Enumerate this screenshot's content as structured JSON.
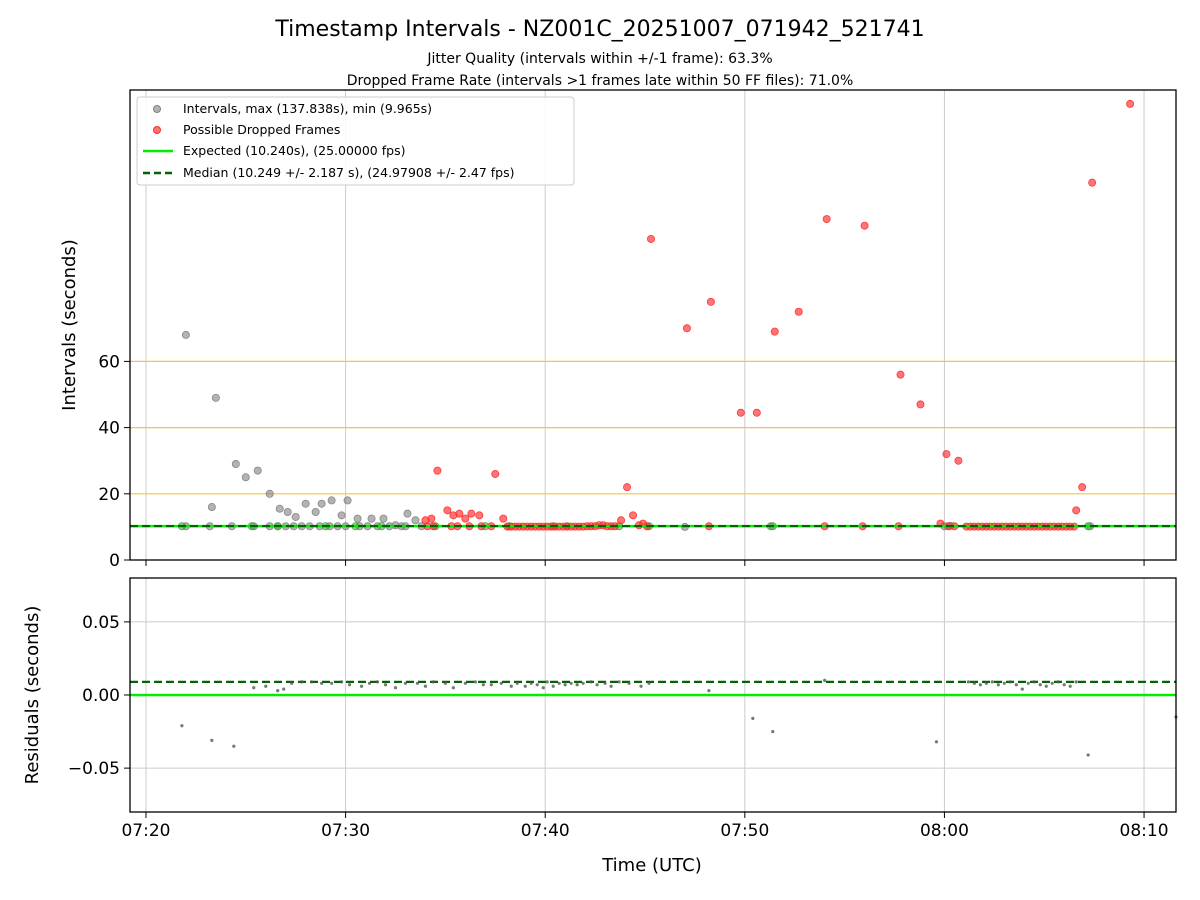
{
  "chart_data": {
    "type": "scatter",
    "title": "Timestamp Intervals - NZ001C_20251007_071942_521741",
    "subtitles": [
      "Jitter Quality (intervals within +/-1 frame): 63.3%",
      "Dropped Frame Rate (intervals >1 frames late within 50 FF files): 71.0%"
    ],
    "xlabel": "Time (UTC)",
    "x_ticks": [
      "07:20",
      "07:30",
      "07:40",
      "07:50",
      "08:00",
      "08:10"
    ],
    "x_range_min": [
      19.2,
      71.6
    ],
    "top": {
      "ylabel": "Intervals (seconds)",
      "y_range": [
        0,
        142
      ],
      "y_ticks": [
        0,
        20,
        40,
        60
      ],
      "hlines": [
        20,
        40,
        60
      ],
      "expected": 10.24,
      "median": 10.249,
      "legend": [
        "Intervals, max (137.838s), min (9.965s)",
        "Possible Dropped Frames",
        "Expected (10.240s), (25.00000 fps)",
        "Median (10.249 +/- 2.187 s), (24.97908 +/- 2.47 fps)"
      ],
      "gray_points": [
        [
          22.0,
          68
        ],
        [
          22.0,
          10.2
        ],
        [
          23.2,
          10.2
        ],
        [
          23.3,
          16
        ],
        [
          23.5,
          49
        ],
        [
          24.3,
          10.2
        ],
        [
          24.5,
          29
        ],
        [
          25.0,
          25
        ],
        [
          25.4,
          10.2
        ],
        [
          25.6,
          27
        ],
        [
          26.2,
          10.2
        ],
        [
          26.2,
          20
        ],
        [
          26.6,
          10.2
        ],
        [
          26.7,
          15.5
        ],
        [
          27.0,
          10.2
        ],
        [
          27.1,
          14.5
        ],
        [
          27.4,
          10.2
        ],
        [
          27.5,
          13
        ],
        [
          27.8,
          10.2
        ],
        [
          28.0,
          17
        ],
        [
          28.2,
          10.2
        ],
        [
          28.5,
          14.5
        ],
        [
          28.7,
          10.2
        ],
        [
          28.8,
          17
        ],
        [
          29.2,
          10.2
        ],
        [
          29.3,
          18
        ],
        [
          29.6,
          10.2
        ],
        [
          29.8,
          13.5
        ],
        [
          30.0,
          10.2
        ],
        [
          30.1,
          18
        ],
        [
          30.6,
          12.5
        ],
        [
          30.7,
          10.2
        ],
        [
          31.1,
          10.2
        ],
        [
          31.3,
          12.5
        ],
        [
          31.6,
          10.2
        ],
        [
          31.9,
          12.5
        ],
        [
          32.2,
          10.2
        ],
        [
          32.5,
          10.5
        ],
        [
          32.8,
          10.2
        ],
        [
          33.0,
          10.2
        ],
        [
          33.1,
          14
        ],
        [
          33.5,
          12
        ],
        [
          33.8,
          10.2
        ],
        [
          47.0,
          10
        ],
        [
          51.3,
          10.2
        ],
        [
          60.0,
          10.2
        ],
        [
          60.3,
          10.3
        ],
        [
          67.3,
          10.2
        ]
      ],
      "green_points": [
        [
          21.8,
          10.2
        ],
        [
          25.3,
          10.2
        ],
        [
          26.6,
          10.2
        ],
        [
          29.0,
          10.2
        ],
        [
          30.5,
          10.2
        ],
        [
          31.8,
          10.2
        ],
        [
          34.5,
          10.2
        ],
        [
          37.0,
          10.2
        ],
        [
          38.2,
          10.2
        ],
        [
          40.4,
          10.2
        ],
        [
          41.1,
          10.2
        ],
        [
          43.7,
          10.2
        ],
        [
          45.2,
          10.2
        ],
        [
          51.4,
          10.2
        ],
        [
          67.2,
          10.2
        ]
      ],
      "red_points": [
        [
          34.0,
          12
        ],
        [
          34.3,
          12.5
        ],
        [
          34.6,
          27
        ],
        [
          35.1,
          15
        ],
        [
          35.4,
          13.5
        ],
        [
          35.7,
          14
        ],
        [
          36.0,
          12.5
        ],
        [
          36.3,
          14
        ],
        [
          36.7,
          13.5
        ],
        [
          37.5,
          26
        ],
        [
          37.9,
          12.5
        ],
        [
          34.1,
          10.2
        ],
        [
          34.4,
          10.2
        ],
        [
          35.3,
          10.2
        ],
        [
          35.6,
          10.2
        ],
        [
          36.2,
          10.2
        ],
        [
          36.8,
          10.2
        ],
        [
          37.3,
          10.2
        ],
        [
          38.1,
          10.1
        ],
        [
          38.3,
          10.1
        ],
        [
          38.5,
          10.1
        ],
        [
          38.7,
          10.1
        ],
        [
          38.9,
          10.1
        ],
        [
          39.1,
          10.1
        ],
        [
          39.3,
          10.1
        ],
        [
          39.5,
          10.1
        ],
        [
          39.7,
          10.1
        ],
        [
          39.9,
          10.1
        ],
        [
          40.1,
          10.1
        ],
        [
          40.3,
          10.1
        ],
        [
          40.5,
          10.1
        ],
        [
          40.7,
          10.1
        ],
        [
          40.9,
          10.1
        ],
        [
          41.1,
          10.1
        ],
        [
          41.3,
          10.1
        ],
        [
          41.5,
          10.1
        ],
        [
          41.7,
          10.1
        ],
        [
          41.9,
          10.1
        ],
        [
          42.1,
          10.2
        ],
        [
          42.3,
          10.2
        ],
        [
          42.5,
          10.2
        ],
        [
          42.7,
          10.5
        ],
        [
          42.9,
          10.5
        ],
        [
          43.1,
          10.2
        ],
        [
          43.3,
          10.2
        ],
        [
          43.5,
          10.2
        ],
        [
          43.8,
          12
        ],
        [
          44.1,
          22
        ],
        [
          44.4,
          13.5
        ],
        [
          44.7,
          10.5
        ],
        [
          44.9,
          11
        ],
        [
          45.1,
          10.2
        ],
        [
          45.3,
          97
        ],
        [
          47.1,
          70
        ],
        [
          48.2,
          10.2
        ],
        [
          48.3,
          78
        ],
        [
          49.8,
          44.5
        ],
        [
          50.6,
          44.5
        ],
        [
          51.5,
          69
        ],
        [
          52.7,
          75
        ],
        [
          54.0,
          10.2
        ],
        [
          54.1,
          103
        ],
        [
          55.9,
          10.2
        ],
        [
          56.0,
          101
        ],
        [
          57.7,
          10.2
        ],
        [
          57.8,
          56
        ],
        [
          58.8,
          47
        ],
        [
          59.8,
          11
        ],
        [
          60.1,
          32
        ],
        [
          60.7,
          30
        ],
        [
          60.2,
          10.2
        ],
        [
          60.5,
          10.2
        ],
        [
          61.1,
          10.1
        ],
        [
          61.3,
          10.1
        ],
        [
          61.5,
          10.1
        ],
        [
          61.7,
          10.1
        ],
        [
          61.9,
          10.1
        ],
        [
          62.1,
          10.1
        ],
        [
          62.3,
          10.1
        ],
        [
          62.5,
          10.1
        ],
        [
          62.7,
          10.1
        ],
        [
          62.9,
          10.1
        ],
        [
          63.1,
          10.1
        ],
        [
          63.3,
          10.1
        ],
        [
          63.5,
          10.1
        ],
        [
          63.7,
          10.1
        ],
        [
          63.9,
          10.1
        ],
        [
          64.1,
          10.1
        ],
        [
          64.3,
          10.1
        ],
        [
          64.5,
          10.1
        ],
        [
          64.7,
          10.1
        ],
        [
          64.9,
          10.1
        ],
        [
          65.1,
          10.1
        ],
        [
          65.3,
          10.1
        ],
        [
          65.5,
          10.1
        ],
        [
          65.7,
          10.1
        ],
        [
          65.9,
          10.1
        ],
        [
          66.1,
          10.1
        ],
        [
          66.3,
          10.1
        ],
        [
          66.5,
          10.1
        ],
        [
          66.6,
          15
        ],
        [
          66.9,
          22
        ],
        [
          67.4,
          114
        ],
        [
          69.3,
          137.8
        ]
      ]
    },
    "bottom": {
      "ylabel": "Residuals (seconds)",
      "y_range": [
        -0.08,
        0.08
      ],
      "y_ticks": [
        -0.05,
        0.0,
        0.05
      ],
      "y_tick_labels": [
        "−0.05",
        "0.00",
        "0.05"
      ],
      "expected": 0.0,
      "median": 0.009,
      "points": [
        [
          21.8,
          -0.021
        ],
        [
          23.3,
          -0.031
        ],
        [
          24.4,
          -0.035
        ],
        [
          25.4,
          0.005
        ],
        [
          26.0,
          0.006
        ],
        [
          26.6,
          0.003
        ],
        [
          26.9,
          0.004
        ],
        [
          27.3,
          0.008
        ],
        [
          27.8,
          0.009
        ],
        [
          28.3,
          0.009
        ],
        [
          28.8,
          0.008
        ],
        [
          29.3,
          0.008
        ],
        [
          29.8,
          0.009
        ],
        [
          30.2,
          0.007
        ],
        [
          30.8,
          0.006
        ],
        [
          31.2,
          0.008
        ],
        [
          31.6,
          0.009
        ],
        [
          32.0,
          0.007
        ],
        [
          32.5,
          0.005
        ],
        [
          33.0,
          0.008
        ],
        [
          33.6,
          0.008
        ],
        [
          34.0,
          0.006
        ],
        [
          34.4,
          0.009
        ],
        [
          35.0,
          0.008
        ],
        [
          35.4,
          0.005
        ],
        [
          36.0,
          0.008
        ],
        [
          36.5,
          0.009
        ],
        [
          36.9,
          0.007
        ],
        [
          37.3,
          0.007
        ],
        [
          37.8,
          0.008
        ],
        [
          38.3,
          0.006
        ],
        [
          38.6,
          0.008
        ],
        [
          39.0,
          0.006
        ],
        [
          39.3,
          0.008
        ],
        [
          39.6,
          0.007
        ],
        [
          39.9,
          0.005
        ],
        [
          40.1,
          0.009
        ],
        [
          40.4,
          0.006
        ],
        [
          40.7,
          0.008
        ],
        [
          41.0,
          0.007
        ],
        [
          41.3,
          0.008
        ],
        [
          41.6,
          0.007
        ],
        [
          41.9,
          0.008
        ],
        [
          42.3,
          0.009
        ],
        [
          42.6,
          0.007
        ],
        [
          43.0,
          0.008
        ],
        [
          43.3,
          0.006
        ],
        [
          43.7,
          0.009
        ],
        [
          44.2,
          0.008
        ],
        [
          44.8,
          0.006
        ],
        [
          45.2,
          0.008
        ],
        [
          48.2,
          0.003
        ],
        [
          50.4,
          -0.016
        ],
        [
          51.4,
          -0.025
        ],
        [
          54.0,
          0.01
        ],
        [
          59.6,
          -0.032
        ],
        [
          61.2,
          0.009
        ],
        [
          61.5,
          0.008
        ],
        [
          61.8,
          0.007
        ],
        [
          62.1,
          0.008
        ],
        [
          62.4,
          0.009
        ],
        [
          62.7,
          0.007
        ],
        [
          63.0,
          0.008
        ],
        [
          63.3,
          0.009
        ],
        [
          63.6,
          0.007
        ],
        [
          63.9,
          0.004
        ],
        [
          64.2,
          0.008
        ],
        [
          64.5,
          0.009
        ],
        [
          64.8,
          0.007
        ],
        [
          65.1,
          0.006
        ],
        [
          65.4,
          0.008
        ],
        [
          65.7,
          0.009
        ],
        [
          66.0,
          0.007
        ],
        [
          66.3,
          0.006
        ],
        [
          66.6,
          0.009
        ],
        [
          67.2,
          -0.041
        ],
        [
          71.6,
          -0.015
        ]
      ]
    },
    "colors": {
      "gray": "#808080",
      "red": "#ff2a2a",
      "green_marker": "#3aa83a",
      "expected": "#00ee00",
      "median": "#006400",
      "hline": "#f5c542",
      "grid": "#cccccc",
      "axis": "#000000"
    }
  }
}
